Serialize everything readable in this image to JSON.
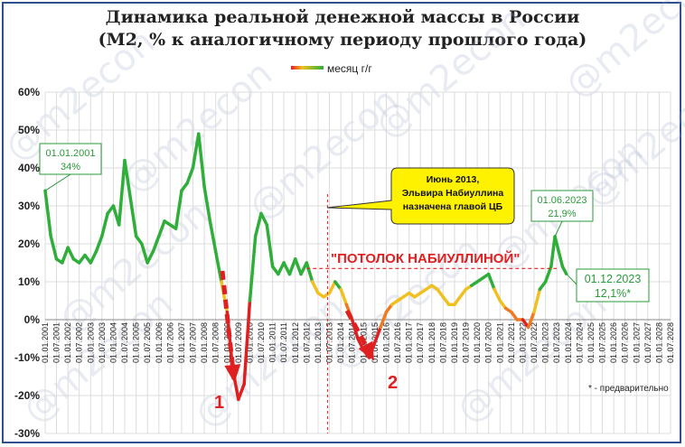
{
  "title_line1": "Динамика реальной денежной массы в России",
  "title_line2": "(М2, % к аналогичному периоду прошлого года)",
  "watermark": "@m2econ",
  "footnote": "* - предварительно",
  "chart_data": {
    "type": "line",
    "legend": "месяц г/г",
    "legend_position": "top-center",
    "ylim": [
      -30,
      60
    ],
    "yticks": [
      -30,
      -20,
      -10,
      0,
      10,
      20,
      30,
      40,
      50,
      60
    ],
    "ytick_suffix": "%",
    "xlim": [
      "01.01.2001",
      "01.07.2028"
    ],
    "xtick_labels": [
      "01.01.2001",
      "01.07.2001",
      "01.01.2002",
      "01.07.2002",
      "01.01.2003",
      "01.07.2003",
      "01.01.2004",
      "01.07.2004",
      "01.01.2005",
      "01.07.2005",
      "01.01.2006",
      "01.07.2006",
      "01.01.2007",
      "01.07.2007",
      "01.01.2008",
      "01.07.2008",
      "01.01.2009",
      "01.07.2009",
      "01.01.2010",
      "01.07.2010",
      "01.01.2011",
      "01.07.2011",
      "01.01.2012",
      "01.07.2012",
      "01.01.2013",
      "01.07.2013",
      "01.01.2014",
      "01.07.2014",
      "01.01.2015",
      "01.07.2015",
      "01.01.2016",
      "01.07.2016",
      "01.01.2017",
      "01.07.2017",
      "01.01.2018",
      "01.07.2018",
      "01.01.2019",
      "01.07.2019",
      "01.01.2020",
      "01.07.2020",
      "01.01.2021",
      "01.07.2021",
      "01.01.2022",
      "01.07.2022",
      "01.01.2023",
      "01.07.2023",
      "01.01.2024",
      "01.07.2024",
      "01.01.2025",
      "01.07.2025",
      "01.01.2026",
      "01.07.2026",
      "01.01.2027",
      "01.07.2027",
      "01.01.2028",
      "01.07.2028"
    ],
    "grid": true,
    "series": [
      {
        "name": "месяц г/г",
        "x": [
          "01.01.2001",
          "01.04.2001",
          "01.07.2001",
          "01.10.2001",
          "01.01.2002",
          "01.04.2002",
          "01.07.2002",
          "01.10.2002",
          "01.01.2003",
          "01.04.2003",
          "01.07.2003",
          "01.10.2003",
          "01.01.2004",
          "01.04.2004",
          "01.07.2004",
          "01.10.2004",
          "01.01.2005",
          "01.04.2005",
          "01.07.2005",
          "01.10.2005",
          "01.01.2006",
          "01.04.2006",
          "01.07.2006",
          "01.10.2006",
          "01.01.2007",
          "01.04.2007",
          "01.07.2007",
          "01.10.2007",
          "01.01.2008",
          "01.04.2008",
          "01.07.2008",
          "01.10.2008",
          "01.01.2009",
          "01.04.2009",
          "01.07.2009",
          "01.10.2009",
          "01.01.2010",
          "01.04.2010",
          "01.07.2010",
          "01.10.2010",
          "01.01.2011",
          "01.04.2011",
          "01.07.2011",
          "01.10.2011",
          "01.01.2012",
          "01.04.2012",
          "01.07.2012",
          "01.10.2012",
          "01.01.2013",
          "01.04.2013",
          "01.07.2013",
          "01.10.2013",
          "01.01.2014",
          "01.04.2014",
          "01.07.2014",
          "01.10.2014",
          "01.01.2015",
          "01.04.2015",
          "01.07.2015",
          "01.10.2015",
          "01.01.2016",
          "01.04.2016",
          "01.07.2016",
          "01.10.2016",
          "01.01.2017",
          "01.04.2017",
          "01.07.2017",
          "01.10.2017",
          "01.01.2018",
          "01.04.2018",
          "01.07.2018",
          "01.10.2018",
          "01.01.2019",
          "01.04.2019",
          "01.07.2019",
          "01.10.2019",
          "01.01.2020",
          "01.04.2020",
          "01.07.2020",
          "01.10.2020",
          "01.01.2021",
          "01.04.2021",
          "01.07.2021",
          "01.10.2021",
          "01.01.2022",
          "01.04.2022",
          "01.07.2022",
          "01.10.2022",
          "01.01.2023",
          "01.04.2023",
          "01.06.2023",
          "01.07.2023",
          "01.10.2023",
          "01.12.2023"
        ],
        "y": [
          34,
          22,
          16,
          15,
          19,
          16,
          15,
          17,
          15,
          18,
          22,
          28,
          30,
          25,
          42,
          32,
          22,
          20,
          15,
          18,
          22,
          26,
          25,
          24,
          34,
          36,
          40,
          49,
          35,
          26,
          18,
          10,
          2,
          -13,
          -21,
          -17,
          5,
          22,
          28,
          25,
          14,
          12,
          15,
          12,
          16,
          12,
          15,
          10,
          7,
          6,
          7,
          10,
          8,
          4,
          0,
          -5,
          -8,
          -10,
          -6,
          -2,
          2,
          4,
          5,
          6,
          7,
          6,
          7,
          8,
          9,
          8,
          6,
          4,
          4,
          6,
          8,
          9,
          10,
          11,
          12,
          8,
          5,
          3,
          2,
          0,
          0,
          -2,
          2,
          8,
          10,
          14,
          21.9,
          20,
          14,
          12.1
        ]
      }
    ],
    "annotations": [
      {
        "label": "01.01.2001",
        "value": "34%"
      },
      {
        "label": "01.06.2023",
        "value": "21,9%"
      },
      {
        "label": "01.12.2023",
        "value": "12,1%*"
      },
      {
        "text_lines": [
          "Июнь 2013,",
          "Эльвира Набиуллина",
          "назначена главой ЦБ"
        ],
        "style": "yellow-callout"
      },
      {
        "text": "\"ПОТОЛОК НАБИУЛЛИНОЙ\"",
        "value": 13.5,
        "from": "01.07.2012",
        "to": "01.07.2023"
      },
      {
        "text": "1",
        "style": "red-dashed-arrow"
      },
      {
        "text": "2",
        "style": "red-dashed-arrow"
      },
      {
        "marker": "vertical-dashed-line",
        "x": "01.06.2013"
      }
    ],
    "colors": {
      "green": "#2fae3a",
      "yellow": "#f0c020",
      "orange": "#f07a20",
      "red": "#e02020",
      "grid": "#dcdcdc"
    }
  }
}
